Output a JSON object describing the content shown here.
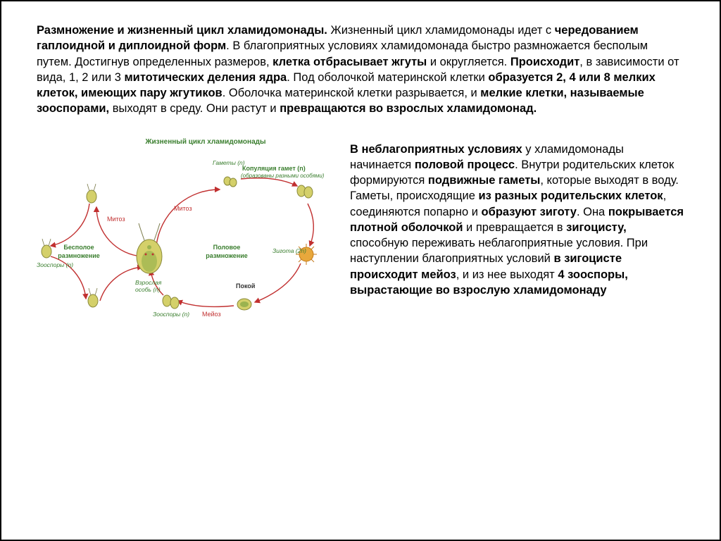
{
  "paragraphs": {
    "top_parts": [
      {
        "t": "Размножение и жизненный цикл хламидомонады. ",
        "b": true
      },
      {
        "t": "Жизненный цикл хламидомонады идет с ",
        "b": false
      },
      {
        "t": "чередованием гаплоидной и диплоидной форм",
        "b": true
      },
      {
        "t": ". В благоприятных условиях хламидомонада быстро размножается бесполым путем. Достигнув определенных размеров, ",
        "b": false
      },
      {
        "t": "клетка отбрасывает жгуты",
        "b": true
      },
      {
        "t": " и округляется. ",
        "b": false
      },
      {
        "t": "Происходит",
        "b": true
      },
      {
        "t": ", в зависимости от вида, 1, 2 или 3 ",
        "b": false
      },
      {
        "t": "митотических деления ядра",
        "b": true
      },
      {
        "t": ". Под оболочкой материнской клетки ",
        "b": false
      },
      {
        "t": "образуется 2, 4 или 8 мелких клеток, имеющих пару жгутиков",
        "b": true
      },
      {
        "t": ". Оболочка материнской клетки разрывается, и ",
        "b": false
      },
      {
        "t": "мелкие клетки, называемые зооспорами, ",
        "b": true
      },
      {
        "t": "выходят в среду. Они растут и ",
        "b": false
      },
      {
        "t": "превращаются во взрослых хламидомонад.",
        "b": true
      }
    ],
    "right_parts": [
      {
        "t": "В неблагоприятных условиях ",
        "b": true
      },
      {
        "t": "у хламидомонады начинается ",
        "b": false
      },
      {
        "t": "половой процесс",
        "b": true
      },
      {
        "t": ". Внутри родительских клеток формируются ",
        "b": false
      },
      {
        "t": "подвижные гаметы",
        "b": true
      },
      {
        "t": ", которые выходят в воду. Гаметы, происходящие ",
        "b": false
      },
      {
        "t": "из разных родительских клеток",
        "b": true
      },
      {
        "t": ", соединяются попарно и ",
        "b": false
      },
      {
        "t": "образуют зиготу",
        "b": true
      },
      {
        "t": ". Она ",
        "b": false
      },
      {
        "t": "покрывается плотной оболочкой",
        "b": true
      },
      {
        "t": " и превращается в ",
        "b": false
      },
      {
        "t": "зигоцисту, ",
        "b": true
      },
      {
        "t": "способную переживать неблагоприятные условия. При наступлении благоприятных условий ",
        "b": false
      },
      {
        "t": "в зигоцисте происходит мейоз",
        "b": true
      },
      {
        "t": ", и из нее выходят ",
        "b": false
      },
      {
        "t": "4 зооспоры, вырастающие во взрослую хламидомонаду",
        "b": true
      }
    ]
  },
  "diagram": {
    "title": "Жизненный цикл хламидомонады",
    "arrow_color": "#c13030",
    "cell_fill": "#d4d06a",
    "cell_stroke": "#8a8a3a",
    "zygote_fill": "#e8a83c",
    "zygote_stroke": "#c47a1a",
    "labels": {
      "mitoz_left": "Митоз",
      "mitoz_right": "Митоз",
      "gamety": "Гаметы (n)",
      "kopul": "Копуляция гамет (n)",
      "kopul_sub": "(образованы разными особями)",
      "zoospory_n_l": "Зооспоры (n)",
      "bespol": "Бесполое",
      "razmn_l": "размножение",
      "polov": "Половое",
      "razmn_r": "размножение",
      "zigota": "Зигота (2n)",
      "vzros": "Взрослая",
      "osob": "особь (n)",
      "zoospory_b": "Зооспоры (n)",
      "meioz": "Мейоз",
      "pokoi": "Покой"
    }
  }
}
